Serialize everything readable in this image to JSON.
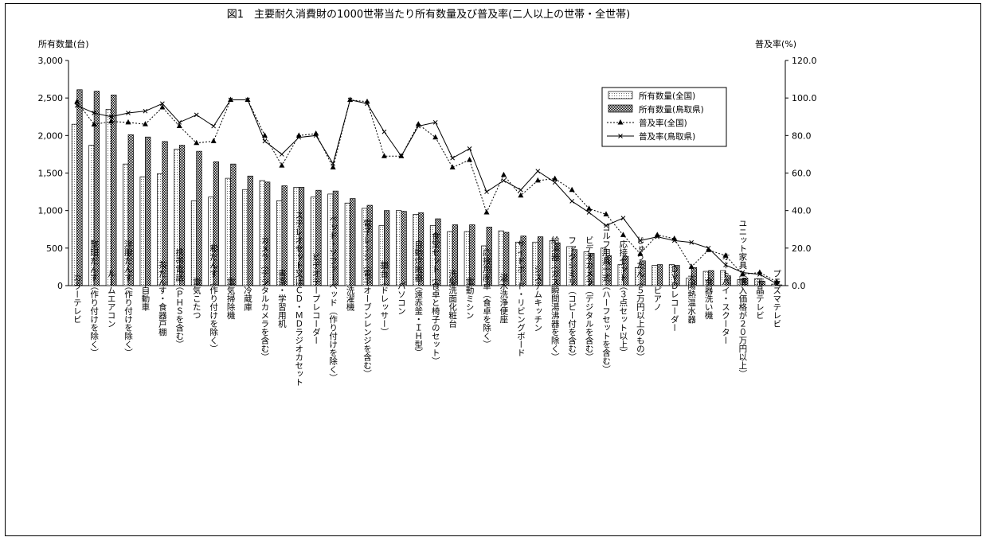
{
  "chart_data": {
    "type": "bar",
    "title": "図1　主要耐久消費財の1000世帯当たり所有数量及び普及率(二人以上の世帯・全世帯)",
    "y_left_label": "所有数量(台)",
    "y_right_label": "普及率(%)",
    "y_left_range": [
      0,
      3000
    ],
    "y_left_ticks": [
      "0",
      "500",
      "1,000",
      "1,500",
      "2,000",
      "2,500",
      "3,000"
    ],
    "y_right_range": [
      0,
      120
    ],
    "y_right_ticks": [
      "0.0",
      "20.0",
      "40.0",
      "60.0",
      "80.0",
      "100.0",
      "120.0"
    ],
    "grid": false,
    "legend_position": "top-right",
    "categories": [
      "カラーテレビ",
      "整理だんす（作り付けを除く）",
      "ルームエアコン",
      "洋服だんす（作り付けを除く）",
      "自動車",
      "茶だんす・食器戸棚",
      "携帯電話（ＰＨＳを含む）",
      "電気こたつ",
      "和だんす（作り付けを除く）",
      "電気掃除機",
      "冷蔵庫",
      "カメラ（デジタルカメラを含む）",
      "書斎・学習用机",
      "ステレオセット又はＣＤ・ＭＤラジオカセット",
      "ビデオテープレコーダー",
      "ベッド・ソファーベッド（作り付けを除く）",
      "洗濯機",
      "電子レンジ（電子オーブンレンジを含む）",
      "鏡台（ドレッサー）",
      "パソコン",
      "自動炊飯器（遠赤釜・ＩＨ型）",
      "食堂セット（食卓と椅子のセット）",
      "洗髪洗面化粧台",
      "電動ミシン",
      "応接用座卓（食卓を除く）",
      "温水洗浄便座",
      "サイドボード・リビングボード",
      "システムキッチン",
      "給湯器（ガス瞬間湯沸器を除く）",
      "ファクシミリ（コピー付を含む）",
      "ビデオカメラ（デジタルを含む）",
      "ゴルフ用具一式（ハーフセットを含む）",
      "応接セット（３点セット以上）",
      "じゅうたん（５万円以上のもの）",
      "ピアノ",
      "ＤＶＤレコーダー",
      "太陽熱温水器",
      "食器洗い機",
      "オートバイ・スクーター",
      "ユニット家具（購入価格が２０万円以上）",
      "液晶テレビ",
      "プラズマテレビ"
    ],
    "series": [
      {
        "name": "所有数量(全国)",
        "type": "bar",
        "axis": "left",
        "color": "#ffffff",
        "values": [
          2150,
          1870,
          2350,
          1620,
          1450,
          1490,
          1820,
          1130,
          1180,
          1430,
          1280,
          1400,
          1130,
          1310,
          1180,
          1220,
          1100,
          1030,
          800,
          1000,
          950,
          800,
          720,
          720,
          530,
          730,
          580,
          580,
          600,
          520,
          450,
          500,
          280,
          240,
          270,
          280,
          100,
          190,
          200,
          80,
          90,
          20
        ]
      },
      {
        "name": "所有数量(鳥取県)",
        "type": "bar",
        "axis": "left",
        "color": "#707070",
        "values": [
          2610,
          2590,
          2540,
          2010,
          1980,
          1920,
          1870,
          1790,
          1650,
          1620,
          1460,
          1380,
          1330,
          1310,
          1270,
          1260,
          1160,
          1070,
          1000,
          990,
          970,
          890,
          810,
          810,
          780,
          710,
          660,
          650,
          570,
          480,
          430,
          400,
          390,
          330,
          280,
          270,
          240,
          200,
          130,
          100,
          60,
          10
        ]
      },
      {
        "name": "普及率(全国)",
        "type": "line",
        "axis": "right",
        "color": "#000000",
        "values": [
          98.0,
          85.9,
          87.5,
          87.0,
          86.0,
          95.0,
          85.0,
          76.0,
          77.0,
          99.0,
          99.0,
          80.0,
          64.0,
          80.0,
          81.0,
          63.0,
          99.0,
          98.0,
          69.0,
          69.0,
          86.0,
          79.0,
          63.0,
          67.0,
          39.0,
          59.0,
          48.0,
          56.0,
          57.0,
          51.0,
          41.0,
          38.0,
          27.0,
          17.0,
          27.0,
          25.0,
          10.0,
          19.0,
          16.0,
          6.0,
          7.0,
          2.0
        ]
      },
      {
        "name": "普及率(鳥取県)",
        "type": "line",
        "axis": "right",
        "color": "#000000",
        "values": [
          96.0,
          92.0,
          90.0,
          92.0,
          93.0,
          97.0,
          87.0,
          91.0,
          85.0,
          99.0,
          99.0,
          77.0,
          70.0,
          79.0,
          80.0,
          65.0,
          99.0,
          97.0,
          82.0,
          69.0,
          85.0,
          87.0,
          68.0,
          73.0,
          50.0,
          56.0,
          51.0,
          61.0,
          55.0,
          45.0,
          39.0,
          32.0,
          36.0,
          24.0,
          26.0,
          24.0,
          23.0,
          20.0,
          11.0,
          7.0,
          6.0,
          1.0
        ]
      }
    ]
  }
}
